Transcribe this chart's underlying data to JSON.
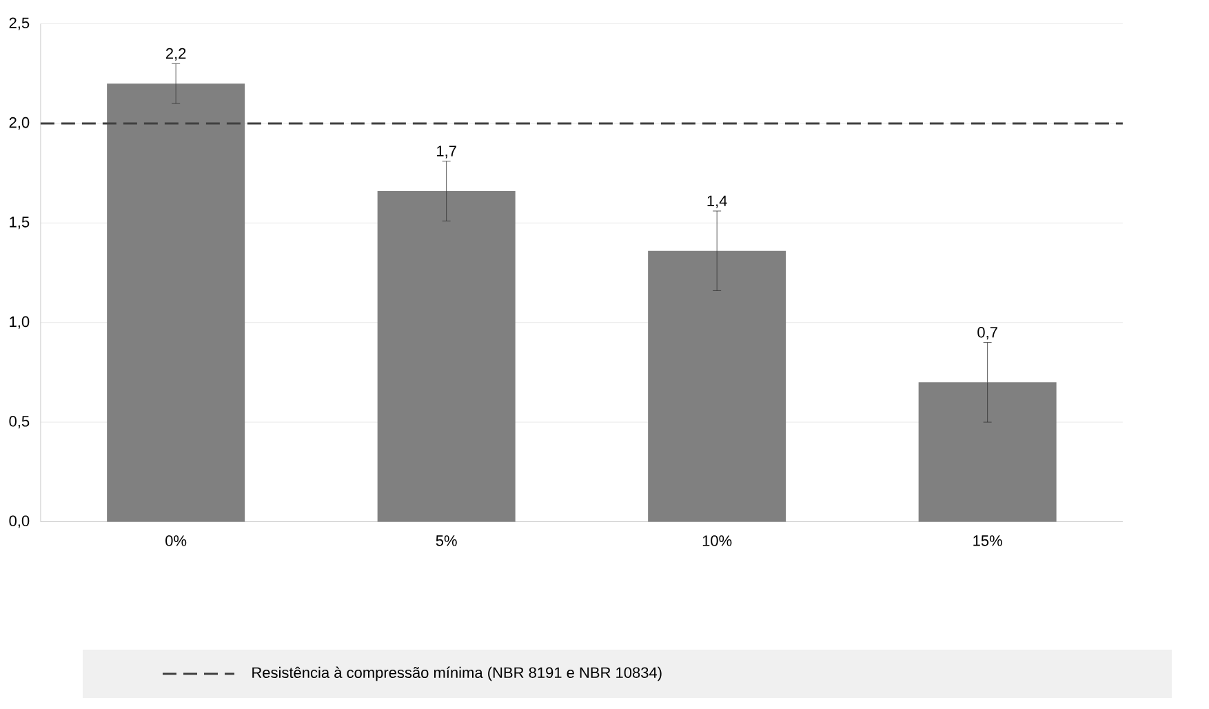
{
  "chart_data": {
    "type": "bar",
    "categories": [
      "0%",
      "5%",
      "10%",
      "15%"
    ],
    "values": [
      2.2,
      1.66,
      1.36,
      0.7
    ],
    "errors": [
      0.1,
      0.15,
      0.2,
      0.2
    ],
    "value_labels": [
      "2,2",
      "1,7",
      "1,4",
      "0,7"
    ],
    "color": "#808080",
    "ylim": [
      0,
      2.5
    ],
    "yticks": [
      {
        "value": 0,
        "label": "0,0"
      },
      {
        "value": 0.5,
        "label": "0,5"
      },
      {
        "value": 1,
        "label": "1,0"
      },
      {
        "value": 1.5,
        "label": "1,5"
      },
      {
        "value": 2,
        "label": "2,0"
      },
      {
        "value": 2.5,
        "label": "2,5"
      }
    ],
    "ref_lines": [
      {
        "axis": "y",
        "value": 2,
        "label": "Resistência à compressão mínima (NBR 8191 e NBR 10834)",
        "color": "#404040",
        "line_style": "dashed"
      }
    ],
    "grid": "y",
    "legend": "bottom"
  }
}
